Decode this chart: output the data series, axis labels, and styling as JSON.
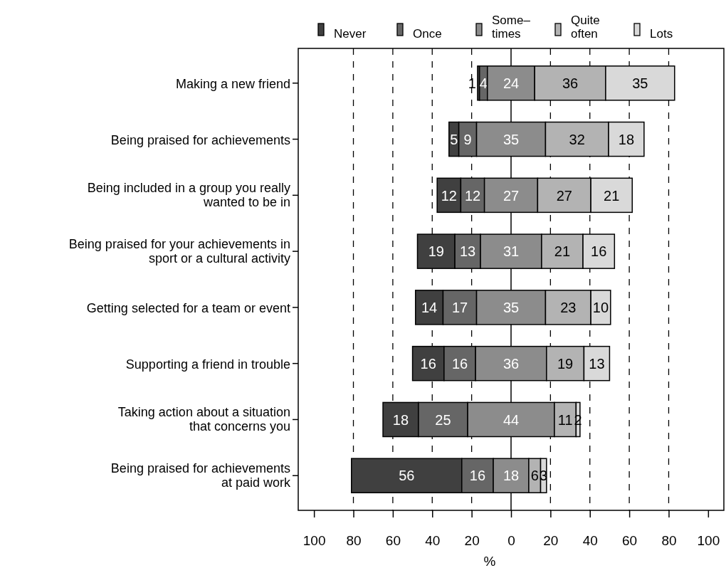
{
  "chart_data": {
    "type": "bar",
    "orientation": "horizontal",
    "categories": [
      "Making a new friend",
      "Being praised for achievements",
      "Being included in a group you really\nwanted to be in",
      "Being praised for your achievements in\nsport or a cultural activity",
      "Getting selected for a team or event",
      "Supporting a friend in trouble",
      "Taking action about a situation\nthat concerns you",
      "Being praised for achievements\nat paid work"
    ],
    "series": [
      {
        "name": "Never",
        "color": "#404040",
        "values": [
          1,
          5,
          12,
          19,
          14,
          16,
          18,
          56
        ],
        "base": [
          -17,
          -31.5,
          -37.5,
          -47.5,
          -48.5,
          -50,
          -65,
          -81
        ]
      },
      {
        "name": "Once",
        "color": "#666666",
        "values": [
          4,
          9,
          12,
          13,
          17,
          16,
          25,
          16
        ],
        "base": [
          -16,
          -26.5,
          -25.5,
          -28.5,
          -34.5,
          -34,
          -47,
          -25
        ]
      },
      {
        "name": "Some–\ntimes",
        "color": "#8c8c8c",
        "values": [
          24,
          35,
          27,
          31,
          35,
          36,
          44,
          18
        ],
        "base": [
          -12,
          -17.5,
          -13.5,
          -15.5,
          -17.5,
          -18,
          -22,
          -9
        ]
      },
      {
        "name": "Quite\noften",
        "color": "#b3b3b3",
        "values": [
          36,
          32,
          27,
          21,
          23,
          19,
          11,
          6
        ],
        "base": [
          12,
          17.5,
          13.5,
          15.5,
          17.5,
          18,
          22,
          9
        ]
      },
      {
        "name": "Lots",
        "color": "#d9d9d9",
        "values": [
          35,
          18,
          21,
          16,
          10,
          13,
          2,
          3
        ],
        "base": [
          48,
          49.5,
          40.5,
          36.5,
          40.5,
          37,
          33,
          15
        ]
      }
    ],
    "data_labels": true,
    "xlabel": "%",
    "xlim": [
      -108,
      108
    ],
    "xticks": [
      {
        "value": -100,
        "label": "100"
      },
      {
        "value": -80,
        "label": "80"
      },
      {
        "value": -60,
        "label": "60"
      },
      {
        "value": -40,
        "label": "40"
      },
      {
        "value": -20,
        "label": "20"
      },
      0,
      20,
      40,
      60,
      80,
      100
    ],
    "ref_lines": [
      {
        "axis": "x",
        "value": -80,
        "line_style": "dashed"
      },
      {
        "axis": "x",
        "value": -60,
        "line_style": "dashed"
      },
      {
        "axis": "x",
        "value": -40,
        "line_style": "dashed"
      },
      {
        "axis": "x",
        "value": -20,
        "line_style": "dashed"
      },
      {
        "axis": "x",
        "value": 20,
        "line_style": "dashed"
      },
      {
        "axis": "x",
        "value": 40,
        "line_style": "dashed"
      },
      {
        "axis": "x",
        "value": 60,
        "line_style": "dashed"
      },
      {
        "axis": "x",
        "value": 80,
        "line_style": "dashed"
      },
      {
        "axis": "x",
        "value": 0,
        "line_style": "solid"
      }
    ],
    "legend": "top"
  }
}
